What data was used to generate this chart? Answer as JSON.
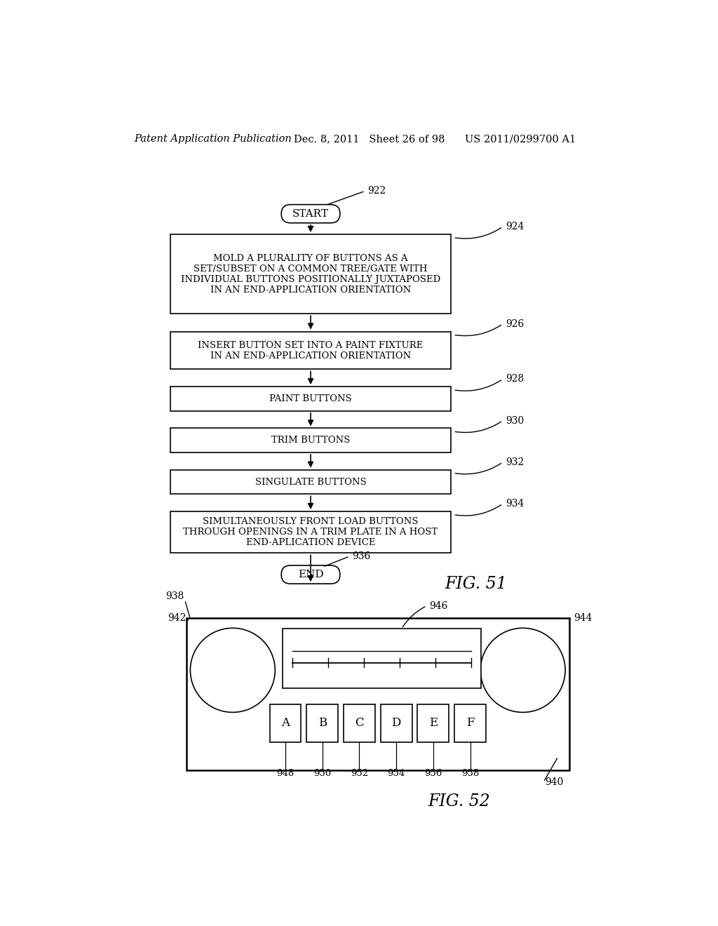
{
  "bg_color": "#ffffff",
  "header_left": "Patent Application Publication",
  "header_mid": "Dec. 8, 2011   Sheet 26 of 98",
  "header_right": "US 2011/0299700 A1",
  "fig51_label": "FIG. 51",
  "fig52_label": "FIG. 52",
  "flowchart": {
    "start_label": "START",
    "start_ref": "922",
    "boxes": [
      {
        "ref": "924",
        "text": "MOLD A PLURALITY OF BUTTONS AS A\nSET/SUBSET ON A COMMON TREE/GATE WITH\nINDIVIDUAL BUTTONS POSITIONALLY JUXTAPOSED\nIN AN END-APPLICATION ORIENTATION"
      },
      {
        "ref": "926",
        "text": "INSERT BUTTON SET INTO A PAINT FIXTURE\nIN AN END-APPLICATION ORIENTATION"
      },
      {
        "ref": "928",
        "text": "PAINT BUTTONS"
      },
      {
        "ref": "930",
        "text": "TRIM BUTTONS"
      },
      {
        "ref": "932",
        "text": "SINGULATE BUTTONS"
      },
      {
        "ref": "934",
        "text": "SIMULTANEOUSLY FRONT LOAD BUTTONS\nTHROUGH OPENINGS IN A TRIM PLATE IN A HOST\nEND-APLICATION DEVICE"
      }
    ],
    "end_label": "END",
    "end_ref": "936"
  },
  "fig52": {
    "panel_ref": "938",
    "outer_ref": "940",
    "left_knob_ref": "942",
    "right_knob_ref": "944",
    "display_ref": "946",
    "buttons": [
      {
        "label": "A",
        "ref": "948"
      },
      {
        "label": "B",
        "ref": "950"
      },
      {
        "label": "C",
        "ref": "952"
      },
      {
        "label": "D",
        "ref": "954"
      },
      {
        "label": "E",
        "ref": "956"
      },
      {
        "label": "F",
        "ref": "958"
      }
    ]
  }
}
